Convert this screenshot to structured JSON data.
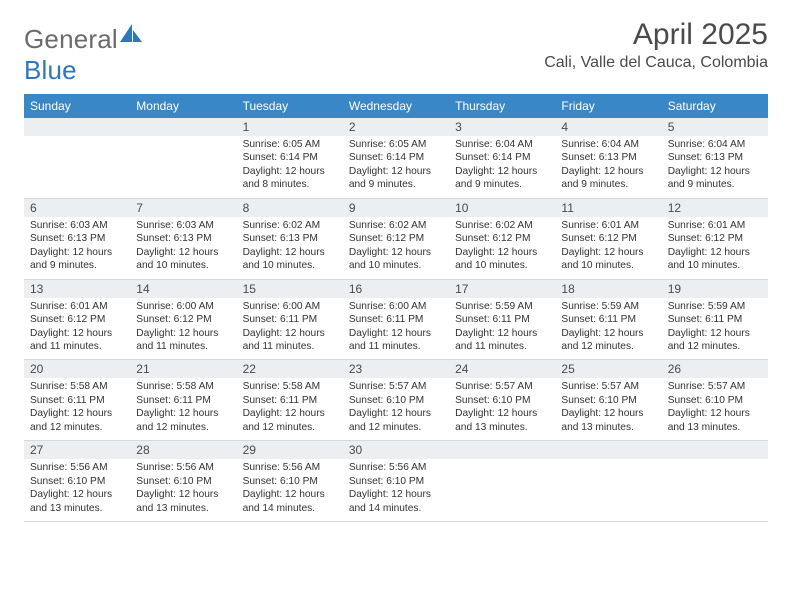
{
  "brand": {
    "part1": "General",
    "part2": "Blue"
  },
  "title": "April 2025",
  "location": "Cali, Valle del Cauca, Colombia",
  "colors": {
    "header_bg": "#3a87c8",
    "header_text": "#ffffff",
    "daynum_bg": "#eceff1",
    "border": "#d5d9dc",
    "title_color": "#4a4a4a",
    "brand_gray": "#6b6b6b",
    "brand_blue": "#2f77bb"
  },
  "weekdays": [
    "Sunday",
    "Monday",
    "Tuesday",
    "Wednesday",
    "Thursday",
    "Friday",
    "Saturday"
  ],
  "layout": {
    "first_weekday_index": 2,
    "days_in_month": 30
  },
  "days": {
    "1": {
      "sunrise": "6:05 AM",
      "sunset": "6:14 PM",
      "daylight": "12 hours and 8 minutes."
    },
    "2": {
      "sunrise": "6:05 AM",
      "sunset": "6:14 PM",
      "daylight": "12 hours and 9 minutes."
    },
    "3": {
      "sunrise": "6:04 AM",
      "sunset": "6:14 PM",
      "daylight": "12 hours and 9 minutes."
    },
    "4": {
      "sunrise": "6:04 AM",
      "sunset": "6:13 PM",
      "daylight": "12 hours and 9 minutes."
    },
    "5": {
      "sunrise": "6:04 AM",
      "sunset": "6:13 PM",
      "daylight": "12 hours and 9 minutes."
    },
    "6": {
      "sunrise": "6:03 AM",
      "sunset": "6:13 PM",
      "daylight": "12 hours and 9 minutes."
    },
    "7": {
      "sunrise": "6:03 AM",
      "sunset": "6:13 PM",
      "daylight": "12 hours and 10 minutes."
    },
    "8": {
      "sunrise": "6:02 AM",
      "sunset": "6:13 PM",
      "daylight": "12 hours and 10 minutes."
    },
    "9": {
      "sunrise": "6:02 AM",
      "sunset": "6:12 PM",
      "daylight": "12 hours and 10 minutes."
    },
    "10": {
      "sunrise": "6:02 AM",
      "sunset": "6:12 PM",
      "daylight": "12 hours and 10 minutes."
    },
    "11": {
      "sunrise": "6:01 AM",
      "sunset": "6:12 PM",
      "daylight": "12 hours and 10 minutes."
    },
    "12": {
      "sunrise": "6:01 AM",
      "sunset": "6:12 PM",
      "daylight": "12 hours and 10 minutes."
    },
    "13": {
      "sunrise": "6:01 AM",
      "sunset": "6:12 PM",
      "daylight": "12 hours and 11 minutes."
    },
    "14": {
      "sunrise": "6:00 AM",
      "sunset": "6:12 PM",
      "daylight": "12 hours and 11 minutes."
    },
    "15": {
      "sunrise": "6:00 AM",
      "sunset": "6:11 PM",
      "daylight": "12 hours and 11 minutes."
    },
    "16": {
      "sunrise": "6:00 AM",
      "sunset": "6:11 PM",
      "daylight": "12 hours and 11 minutes."
    },
    "17": {
      "sunrise": "5:59 AM",
      "sunset": "6:11 PM",
      "daylight": "12 hours and 11 minutes."
    },
    "18": {
      "sunrise": "5:59 AM",
      "sunset": "6:11 PM",
      "daylight": "12 hours and 12 minutes."
    },
    "19": {
      "sunrise": "5:59 AM",
      "sunset": "6:11 PM",
      "daylight": "12 hours and 12 minutes."
    },
    "20": {
      "sunrise": "5:58 AM",
      "sunset": "6:11 PM",
      "daylight": "12 hours and 12 minutes."
    },
    "21": {
      "sunrise": "5:58 AM",
      "sunset": "6:11 PM",
      "daylight": "12 hours and 12 minutes."
    },
    "22": {
      "sunrise": "5:58 AM",
      "sunset": "6:11 PM",
      "daylight": "12 hours and 12 minutes."
    },
    "23": {
      "sunrise": "5:57 AM",
      "sunset": "6:10 PM",
      "daylight": "12 hours and 12 minutes."
    },
    "24": {
      "sunrise": "5:57 AM",
      "sunset": "6:10 PM",
      "daylight": "12 hours and 13 minutes."
    },
    "25": {
      "sunrise": "5:57 AM",
      "sunset": "6:10 PM",
      "daylight": "12 hours and 13 minutes."
    },
    "26": {
      "sunrise": "5:57 AM",
      "sunset": "6:10 PM",
      "daylight": "12 hours and 13 minutes."
    },
    "27": {
      "sunrise": "5:56 AM",
      "sunset": "6:10 PM",
      "daylight": "12 hours and 13 minutes."
    },
    "28": {
      "sunrise": "5:56 AM",
      "sunset": "6:10 PM",
      "daylight": "12 hours and 13 minutes."
    },
    "29": {
      "sunrise": "5:56 AM",
      "sunset": "6:10 PM",
      "daylight": "12 hours and 14 minutes."
    },
    "30": {
      "sunrise": "5:56 AM",
      "sunset": "6:10 PM",
      "daylight": "12 hours and 14 minutes."
    }
  },
  "labels": {
    "sunrise": "Sunrise:",
    "sunset": "Sunset:",
    "daylight": "Daylight:"
  }
}
